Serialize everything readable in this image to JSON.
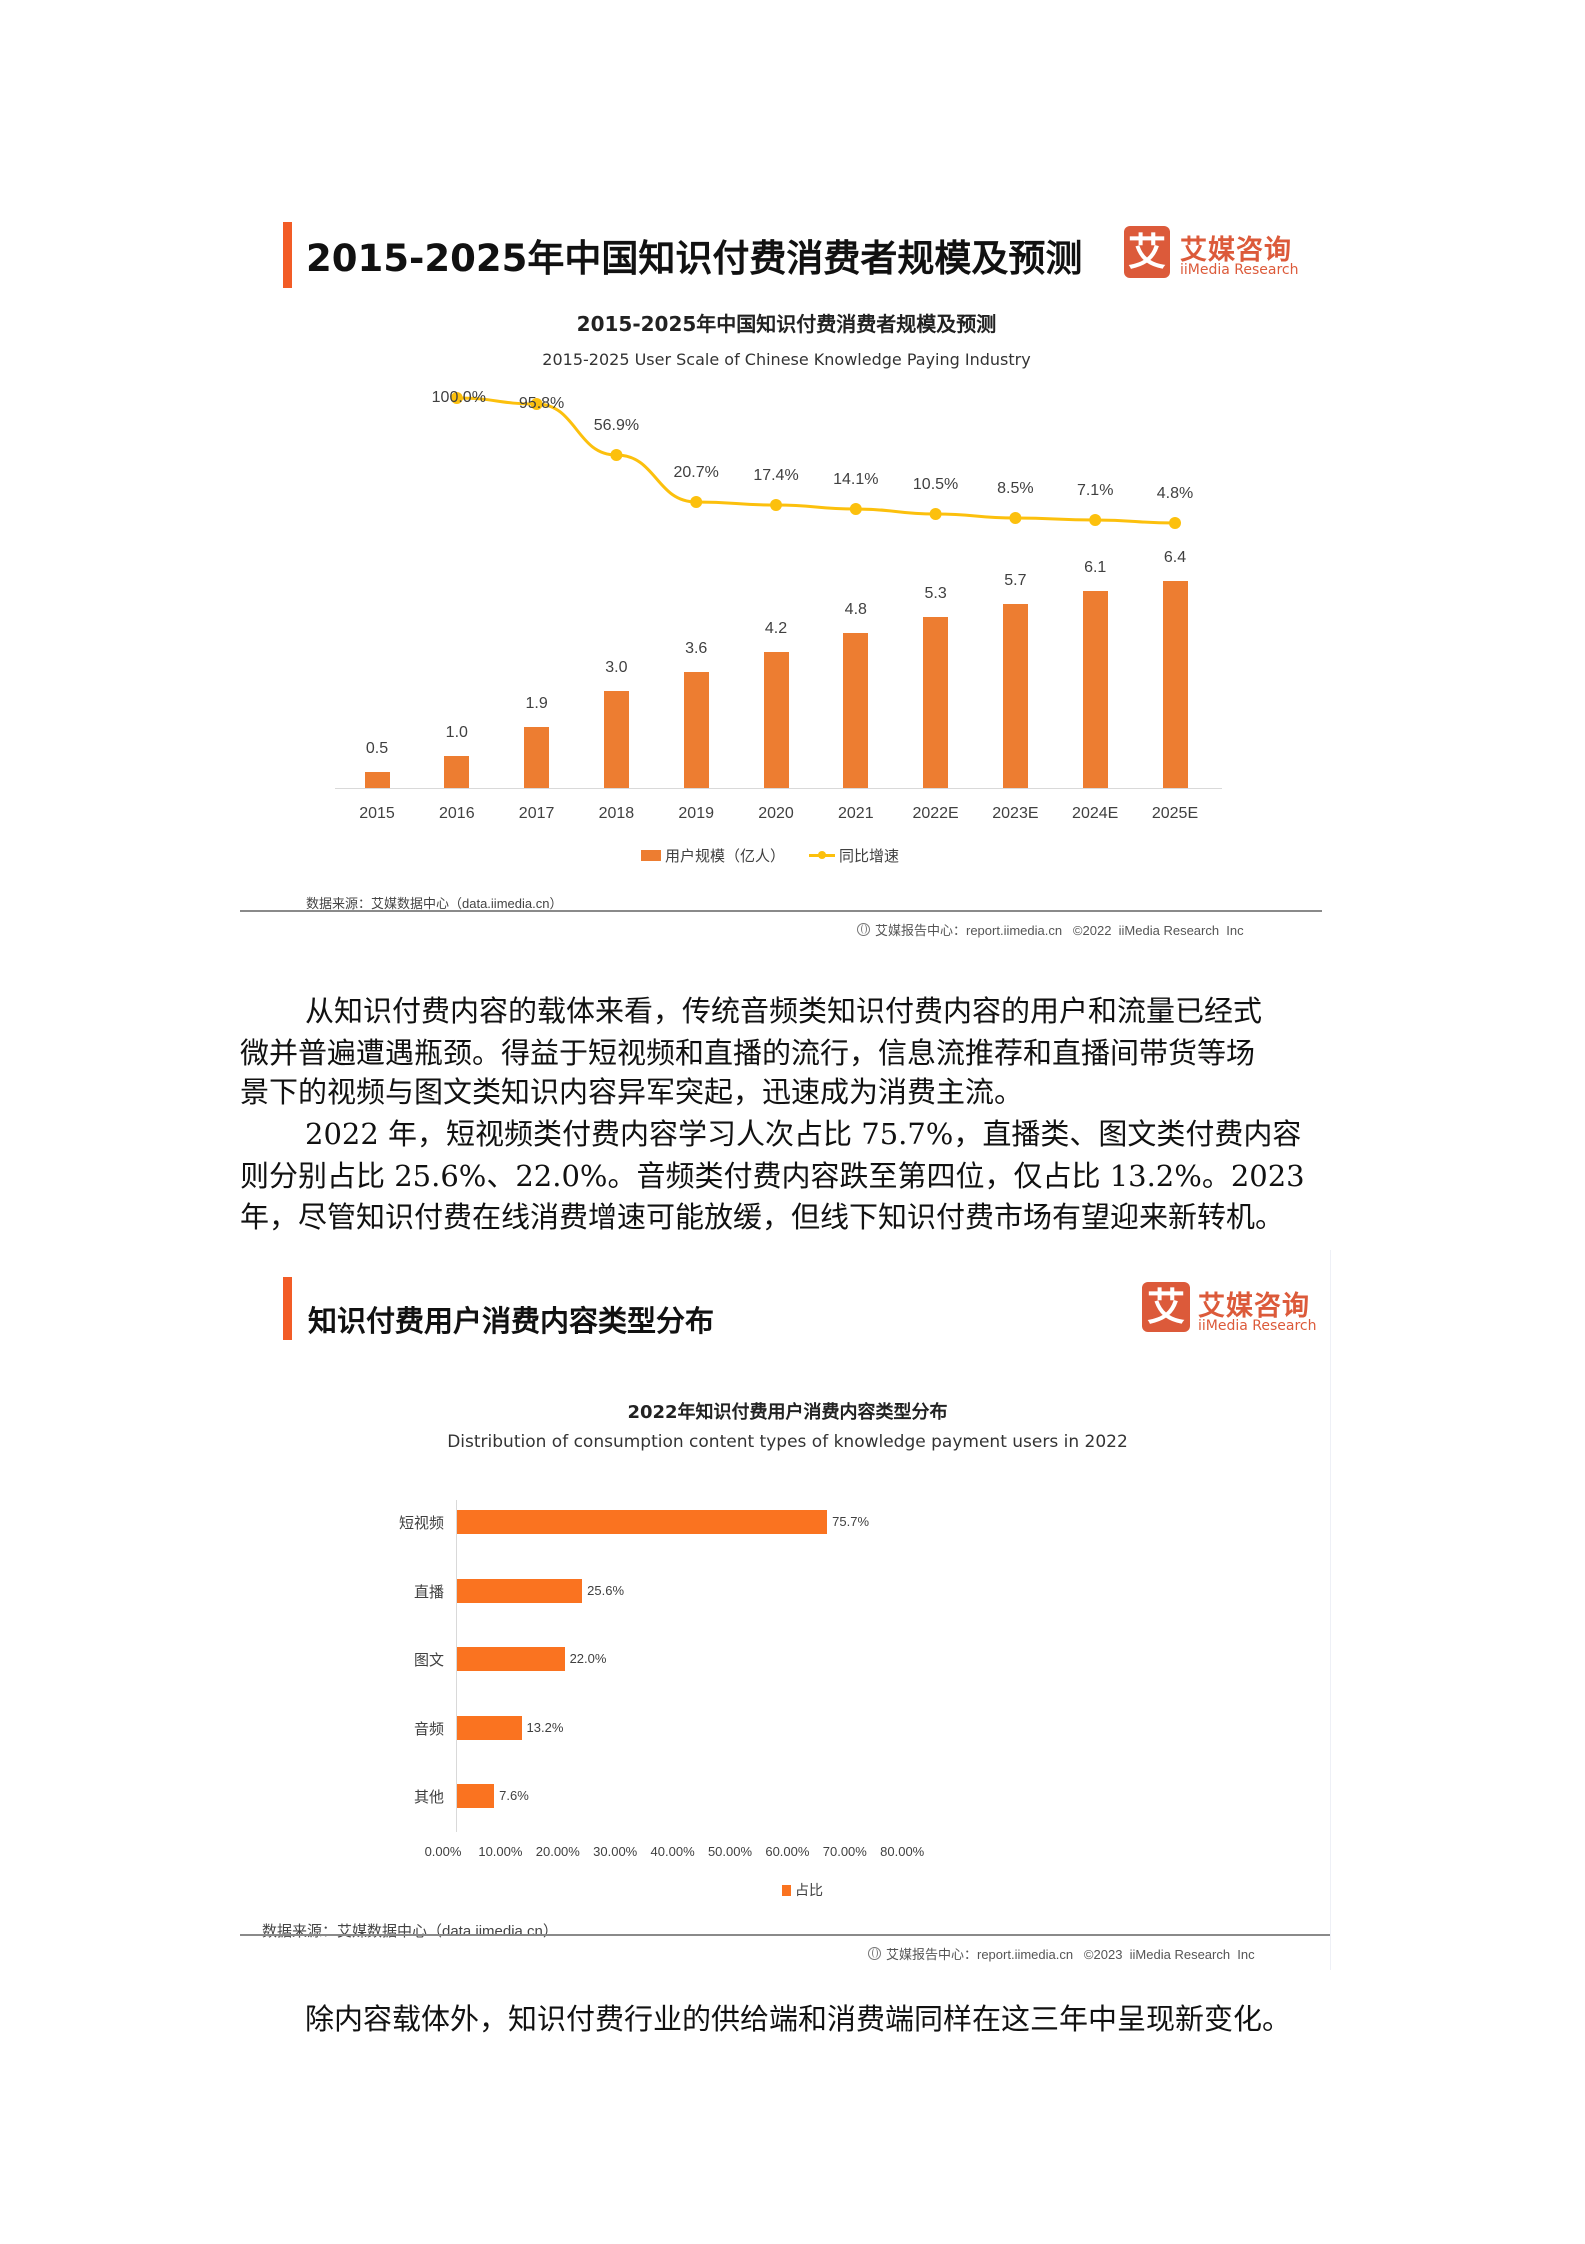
{
  "section1": {
    "heading": "2015-2025年中国知识付费消费者规模及预测",
    "logo": {
      "icon_char": "艾",
      "name_cn": "艾媒咨询",
      "name_en": "iiMedia Research"
    },
    "chart_title": "2015-2025年中国知识付费消费者规模及预测",
    "chart_subtitle": "2015-2025 User Scale of Chinese Knowledge Paying Industry",
    "legend": {
      "bar": "用户规模（亿人）",
      "line": "同比增速"
    },
    "source": "数据来源：艾媒数据中心（data.iimedia.cn）",
    "footer": "艾媒报告中心：report.iimedia.cn   ©2022  iiMedia Research  Inc"
  },
  "paragraphs": {
    "p1": [
      "从知识付费内容的载体来看，传统音频类知识付费内容的用户和流量已经式",
      "微并普遍遭遇瓶颈。得益于短视频和直播的流行，信息流推荐和直播间带货等场",
      "景下的视频与图文类知识内容异军突起，迅速成为消费主流。"
    ],
    "p2": [
      "2022 年，短视频类付费内容学习人次占比 75.7%，直播类、图文类付费内容",
      "则分别占比 25.6%、22.0%。音频类付费内容跌至第四位，仅占比 13.2%。2023",
      "年，尽管知识付费在线消费增速可能放缓，但线下知识付费市场有望迎来新转机。"
    ],
    "p3": [
      "除内容载体外，知识付费行业的供给端和消费端同样在这三年中呈现新变化。"
    ]
  },
  "section2": {
    "heading": "知识付费用户消费内容类型分布",
    "logo": {
      "icon_char": "艾",
      "name_cn": "艾媒咨询",
      "name_en": "iiMedia Research"
    },
    "chart_title": "2022年知识付费用户消费内容类型分布",
    "chart_subtitle": "Distribution of consumption content types of knowledge payment users in 2022",
    "legend": {
      "bar": "占比"
    },
    "source": "数据来源：艾媒数据中心（data.iimedia.cn）",
    "footer": "艾媒报告中心：report.iimedia.cn   ©2023  iiMedia Research  Inc"
  },
  "colors": {
    "accent_bar": "#f25c26",
    "logo": "#dc5a3a",
    "bar_chart1": "#ed7d31",
    "line_chart1": "#fcc00d",
    "bar_chart2": "#fa7320"
  },
  "chart_data": [
    {
      "type": "bar+line",
      "title": "2015-2025年中国知识付费消费者规模及预测",
      "subtitle": "2015-2025 User Scale of Chinese Knowledge Paying Industry",
      "categories": [
        "2015",
        "2016",
        "2017",
        "2018",
        "2019",
        "2020",
        "2021",
        "2022E",
        "2023E",
        "2024E",
        "2025E"
      ],
      "series": [
        {
          "name": "用户规模（亿人）",
          "type": "bar",
          "values": [
            0.5,
            1.0,
            1.9,
            3.0,
            3.6,
            4.2,
            4.8,
            5.3,
            5.7,
            6.1,
            6.4
          ],
          "labels": [
            "0.5",
            "1.0",
            "1.9",
            "3.0",
            "3.6",
            "4.2",
            "4.8",
            "5.3",
            "5.7",
            "6.1",
            "6.4"
          ]
        },
        {
          "name": "同比增速",
          "type": "line",
          "values": [
            null,
            100.0,
            95.8,
            56.9,
            20.7,
            17.4,
            14.1,
            10.5,
            8.5,
            7.1,
            4.8
          ],
          "labels": [
            "",
            "100.0%",
            "95.8%",
            "56.9%",
            "20.7%",
            "17.4%",
            "14.1%",
            "10.5%",
            "8.5%",
            "7.1%",
            "4.8%"
          ]
        }
      ],
      "xlabel": "",
      "ylabel": "",
      "grid": false,
      "legend_position": "bottom"
    },
    {
      "type": "bar",
      "orientation": "horizontal",
      "title": "2022年知识付费用户消费内容类型分布",
      "subtitle": "Distribution of consumption content types of knowledge payment users in 2022",
      "categories": [
        "短视频",
        "直播",
        "图文",
        "音频",
        "其他"
      ],
      "series": [
        {
          "name": "占比",
          "values": [
            75.7,
            25.6,
            22.0,
            13.2,
            7.6
          ],
          "labels": [
            "75.7%",
            "25.6%",
            "22.0%",
            "13.2%",
            "7.6%"
          ]
        }
      ],
      "xticks": [
        "0.00%",
        "10.00%",
        "20.00%",
        "30.00%",
        "40.00%",
        "50.00%",
        "60.00%",
        "70.00%",
        "80.00%"
      ],
      "xlim": [
        0,
        80
      ],
      "grid": false,
      "legend_position": "bottom"
    }
  ]
}
